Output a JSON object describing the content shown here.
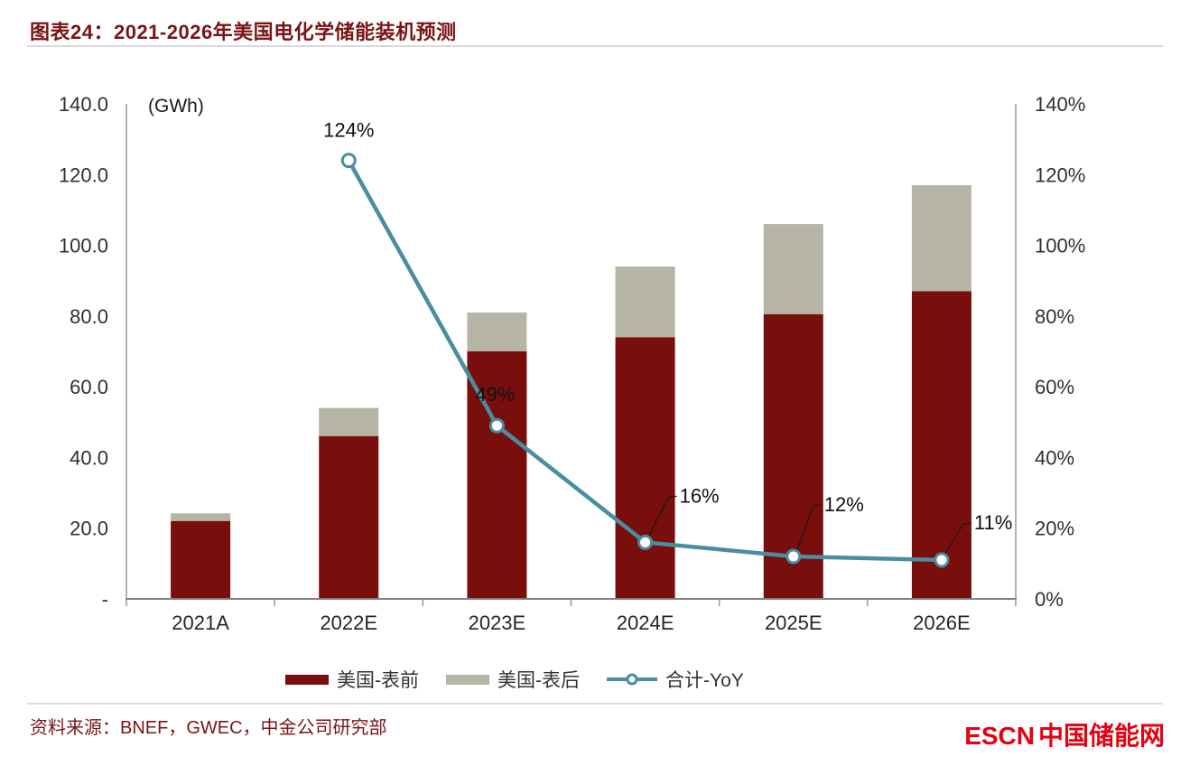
{
  "header": {
    "title": "图表24：2021-2026年美国电化学储能装机预测"
  },
  "chart_data": {
    "type": "bar",
    "subtype": "stacked-bar-with-line",
    "title": "图表24：2021-2026年美国电化学储能装机预测",
    "categories": [
      "2021A",
      "2022E",
      "2023E",
      "2024E",
      "2025E",
      "2026E"
    ],
    "bar_series": [
      {
        "name": "美国-表前",
        "color": "#780F0D",
        "values": [
          22,
          46,
          70,
          74,
          80.5,
          87
        ]
      },
      {
        "name": "美国-表后",
        "color": "#B6B4A4",
        "values": [
          2.2,
          8,
          11,
          20,
          25.5,
          30
        ]
      }
    ],
    "line_series": {
      "name": "合计-YoY",
      "color": "#4A8DA0",
      "axis": "right",
      "values": [
        null,
        124,
        49,
        16,
        12,
        11
      ],
      "point_labels": [
        null,
        "124%",
        "49%",
        "16%",
        "12%",
        "11%"
      ]
    },
    "left_axis": {
      "label": "(GWh)",
      "min": 0,
      "max": 140,
      "ticks": [
        "-",
        "20.0",
        "40.0",
        "60.0",
        "80.0",
        "100.0",
        "120.0",
        "140.0"
      ]
    },
    "right_axis": {
      "min": 0,
      "max": 140,
      "ticks": [
        "0%",
        "20%",
        "40%",
        "60%",
        "80%",
        "100%",
        "120%",
        "140%"
      ]
    },
    "grid": false,
    "legend_position": "bottom"
  },
  "footer": {
    "source": "资料来源：BNEF，GWEC，中金公司研究部",
    "logo_latin": "ESCN",
    "logo_cn": "中国储能网"
  }
}
